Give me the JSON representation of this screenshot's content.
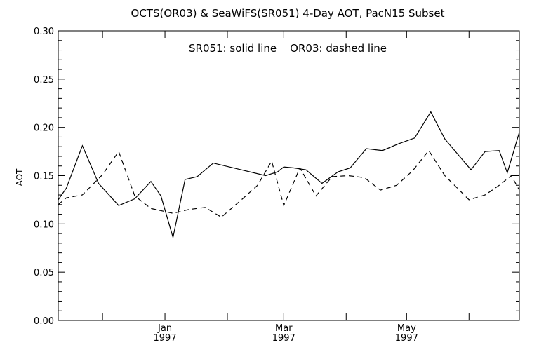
{
  "chart_data": {
    "type": "line",
    "title": "OCTS(OR03) & SeaWiFS(SR051) 4-Day AOT, PacN15 Subset",
    "annotation": "SR051: solid line    OR03: dashed line",
    "ylabel": "AOT",
    "xlabel": "",
    "ylim": [
      0.0,
      0.3
    ],
    "yticks": [
      "0.00",
      "0.05",
      "0.10",
      "0.15",
      "0.20",
      "0.25",
      "0.30"
    ],
    "xlim": [
      "1996-11-09",
      "1997-06-26"
    ],
    "xticks": [
      {
        "date": "1996-12-01",
        "label": "",
        "year": ""
      },
      {
        "date": "1997-01-01",
        "label": "Jan",
        "year": "1997"
      },
      {
        "date": "1997-02-01",
        "label": "",
        "year": ""
      },
      {
        "date": "1997-03-01",
        "label": "Mar",
        "year": "1997"
      },
      {
        "date": "1997-04-01",
        "label": "",
        "year": ""
      },
      {
        "date": "1997-05-01",
        "label": "May",
        "year": "1997"
      },
      {
        "date": "1997-06-01",
        "label": "",
        "year": ""
      }
    ],
    "grid": false,
    "series": [
      {
        "name": "SR051",
        "style": "solid",
        "x": [
          "1996-11-09",
          "1996-11-13",
          "1996-11-21",
          "1996-11-29",
          "1996-12-09",
          "1996-12-17",
          "1996-12-25",
          "1996-12-30",
          "1997-01-05",
          "1997-01-11",
          "1997-01-17",
          "1997-01-25",
          "1997-02-20",
          "1997-02-26",
          "1997-03-01",
          "1997-03-06",
          "1997-03-12",
          "1997-03-20",
          "1997-03-28",
          "1997-04-03",
          "1997-04-11",
          "1997-04-19",
          "1997-04-27",
          "1997-05-05",
          "1997-05-13",
          "1997-05-20",
          "1997-06-02",
          "1997-06-09",
          "1997-06-16",
          "1997-06-20",
          "1997-06-26"
        ],
        "y": [
          0.125,
          0.137,
          0.181,
          0.142,
          0.119,
          0.126,
          0.144,
          0.129,
          0.086,
          0.146,
          0.149,
          0.163,
          0.15,
          0.154,
          0.159,
          0.158,
          0.156,
          0.142,
          0.154,
          0.158,
          0.178,
          0.176,
          0.183,
          0.189,
          0.216,
          0.188,
          0.156,
          0.175,
          0.176,
          0.153,
          0.195
        ]
      },
      {
        "name": "OR03",
        "style": "dashed",
        "x": [
          "1996-11-09",
          "1996-11-13",
          "1996-11-21",
          "1996-12-01",
          "1996-12-09",
          "1996-12-17",
          "1996-12-25",
          "1997-01-05",
          "1997-01-13",
          "1997-01-21",
          "1997-01-29",
          "1997-02-08",
          "1997-02-16",
          "1997-02-23",
          "1997-03-01",
          "1997-03-09",
          "1997-03-17",
          "1997-03-25",
          "1997-04-02",
          "1997-04-10",
          "1997-04-18",
          "1997-04-26",
          "1997-05-04",
          "1997-05-12",
          "1997-05-20",
          "1997-06-01",
          "1997-06-09",
          "1997-06-16",
          "1997-06-22",
          "1997-06-26"
        ],
        "y": [
          0.12,
          0.127,
          0.13,
          0.151,
          0.175,
          0.129,
          0.116,
          0.111,
          0.115,
          0.117,
          0.107,
          0.125,
          0.14,
          0.165,
          0.119,
          0.158,
          0.129,
          0.149,
          0.15,
          0.148,
          0.135,
          0.14,
          0.155,
          0.176,
          0.15,
          0.125,
          0.13,
          0.14,
          0.15,
          0.135
        ]
      }
    ]
  }
}
